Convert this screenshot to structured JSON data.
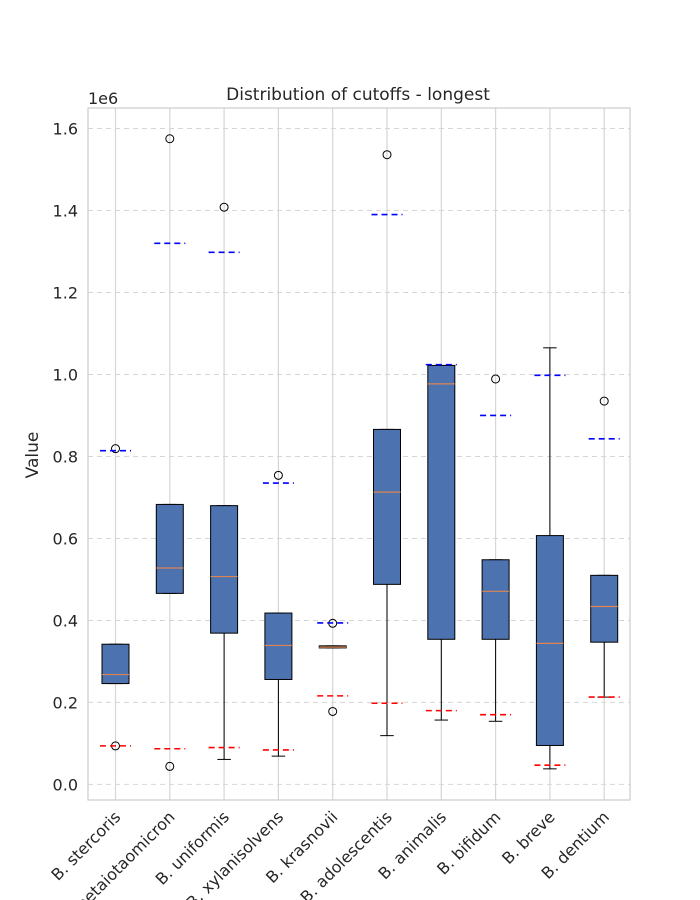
{
  "chart_data": {
    "type": "box",
    "title": "Distribution of cutoffs - longest",
    "xlabel": "",
    "ylabel": "Value",
    "y_scale_label": "1e6",
    "ylim": [
      -0.038,
      1.65
    ],
    "y_ticks": [
      0.0,
      0.2,
      0.4,
      0.6,
      0.8,
      1.0,
      1.2,
      1.4,
      1.6
    ],
    "y_tick_labels": [
      "0.0",
      "0.2",
      "0.4",
      "0.6",
      "0.8",
      "1.0",
      "1.2",
      "1.4",
      "1.6"
    ],
    "grid": true,
    "box_color": "#4c72b0",
    "median_color": "#dd8452",
    "upper_ref_color": "#0000ff",
    "lower_ref_color": "#ff0000",
    "categories": [
      "B. stercoris",
      "B. thetaiotaomicron",
      "B. uniformis",
      "B. xylanisolvens",
      "B. krasnovii",
      "B. adolescentis",
      "B. animalis",
      "B. bifidum",
      "B. breve",
      "B. dentium"
    ],
    "boxes": [
      {
        "whislo": 0.246,
        "q1": 0.246,
        "med": 0.268,
        "q3": 0.342,
        "whishi": 0.342,
        "fliers": [
          0.819,
          0.094
        ],
        "upper_ref": 0.814,
        "lower_ref": 0.094
      },
      {
        "whislo": 0.466,
        "q1": 0.466,
        "med": 0.528,
        "q3": 0.683,
        "whishi": 0.683,
        "fliers": [
          1.575,
          0.044
        ],
        "upper_ref": 1.32,
        "lower_ref": 0.087
      },
      {
        "whislo": 0.061,
        "q1": 0.369,
        "med": 0.507,
        "q3": 0.68,
        "whishi": 0.68,
        "fliers": [
          1.408
        ],
        "upper_ref": 1.298,
        "lower_ref": 0.09
      },
      {
        "whislo": 0.069,
        "q1": 0.256,
        "med": 0.339,
        "q3": 0.418,
        "whishi": 0.418,
        "fliers": [
          0.754
        ],
        "upper_ref": 0.735,
        "lower_ref": 0.084
      },
      {
        "whislo": 0.333,
        "q1": 0.333,
        "med": 0.335,
        "q3": 0.338,
        "whishi": 0.338,
        "fliers": [
          0.393,
          0.178
        ],
        "upper_ref": 0.394,
        "lower_ref": 0.216
      },
      {
        "whislo": 0.119,
        "q1": 0.488,
        "med": 0.713,
        "q3": 0.866,
        "whishi": 0.866,
        "fliers": [
          1.536
        ],
        "upper_ref": 1.39,
        "lower_ref": 0.198
      },
      {
        "whislo": 0.157,
        "q1": 0.354,
        "med": 0.977,
        "q3": 1.022,
        "whishi": 1.022,
        "fliers": [],
        "upper_ref": 1.024,
        "lower_ref": 0.18
      },
      {
        "whislo": 0.154,
        "q1": 0.354,
        "med": 0.471,
        "q3": 0.548,
        "whishi": 0.548,
        "fliers": [
          0.989
        ],
        "upper_ref": 0.9,
        "lower_ref": 0.17
      },
      {
        "whislo": 0.038,
        "q1": 0.095,
        "med": 0.344,
        "q3": 0.607,
        "whishi": 1.065,
        "fliers": [],
        "upper_ref": 0.998,
        "lower_ref": 0.047
      },
      {
        "whislo": 0.213,
        "q1": 0.347,
        "med": 0.434,
        "q3": 0.51,
        "whishi": 0.51,
        "fliers": [
          0.935
        ],
        "upper_ref": 0.843,
        "lower_ref": 0.213
      }
    ]
  }
}
